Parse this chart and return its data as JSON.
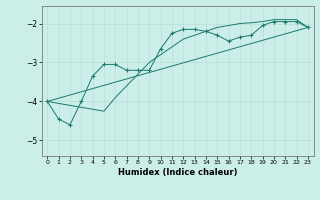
{
  "xlabel": "Humidex (Indice chaleur)",
  "background_color": "#cceee8",
  "grid_color": "#b8ddd8",
  "line_color": "#1a7a6e",
  "xlim": [
    -0.5,
    23.5
  ],
  "ylim": [
    -5.4,
    -1.55
  ],
  "yticks": [
    -5,
    -4,
    -3,
    -2
  ],
  "xticks": [
    0,
    1,
    2,
    3,
    4,
    5,
    6,
    7,
    8,
    9,
    10,
    11,
    12,
    13,
    14,
    15,
    16,
    17,
    18,
    19,
    20,
    21,
    22,
    23
  ],
  "line1_x": [
    0,
    1,
    2,
    3,
    4,
    5,
    6,
    7,
    8,
    9,
    10,
    11,
    12,
    13,
    14,
    15,
    16,
    17,
    18,
    19,
    20,
    21,
    22,
    23
  ],
  "line1_y": [
    -4.0,
    -4.45,
    -4.6,
    -4.0,
    -3.35,
    -3.05,
    -3.05,
    -3.2,
    -3.2,
    -3.2,
    -2.65,
    -2.25,
    -2.15,
    -2.15,
    -2.2,
    -2.3,
    -2.45,
    -2.35,
    -2.3,
    -2.05,
    -1.95,
    -1.95,
    -1.95,
    -2.1
  ],
  "line2_x": [
    0,
    23
  ],
  "line2_y": [
    -4.0,
    -2.1
  ],
  "line3_x": [
    0,
    1,
    2,
    3,
    4,
    5,
    6,
    7,
    8,
    9,
    10,
    11,
    12,
    13,
    14,
    15,
    16,
    17,
    18,
    19,
    20,
    21,
    22,
    23
  ],
  "line3_y": [
    -4.0,
    -4.05,
    -4.1,
    -4.15,
    -4.2,
    -4.25,
    -3.9,
    -3.6,
    -3.3,
    -3.0,
    -2.8,
    -2.6,
    -2.4,
    -2.3,
    -2.2,
    -2.1,
    -2.05,
    -2.0,
    -1.98,
    -1.95,
    -1.9,
    -1.9,
    -1.9,
    -2.1
  ]
}
